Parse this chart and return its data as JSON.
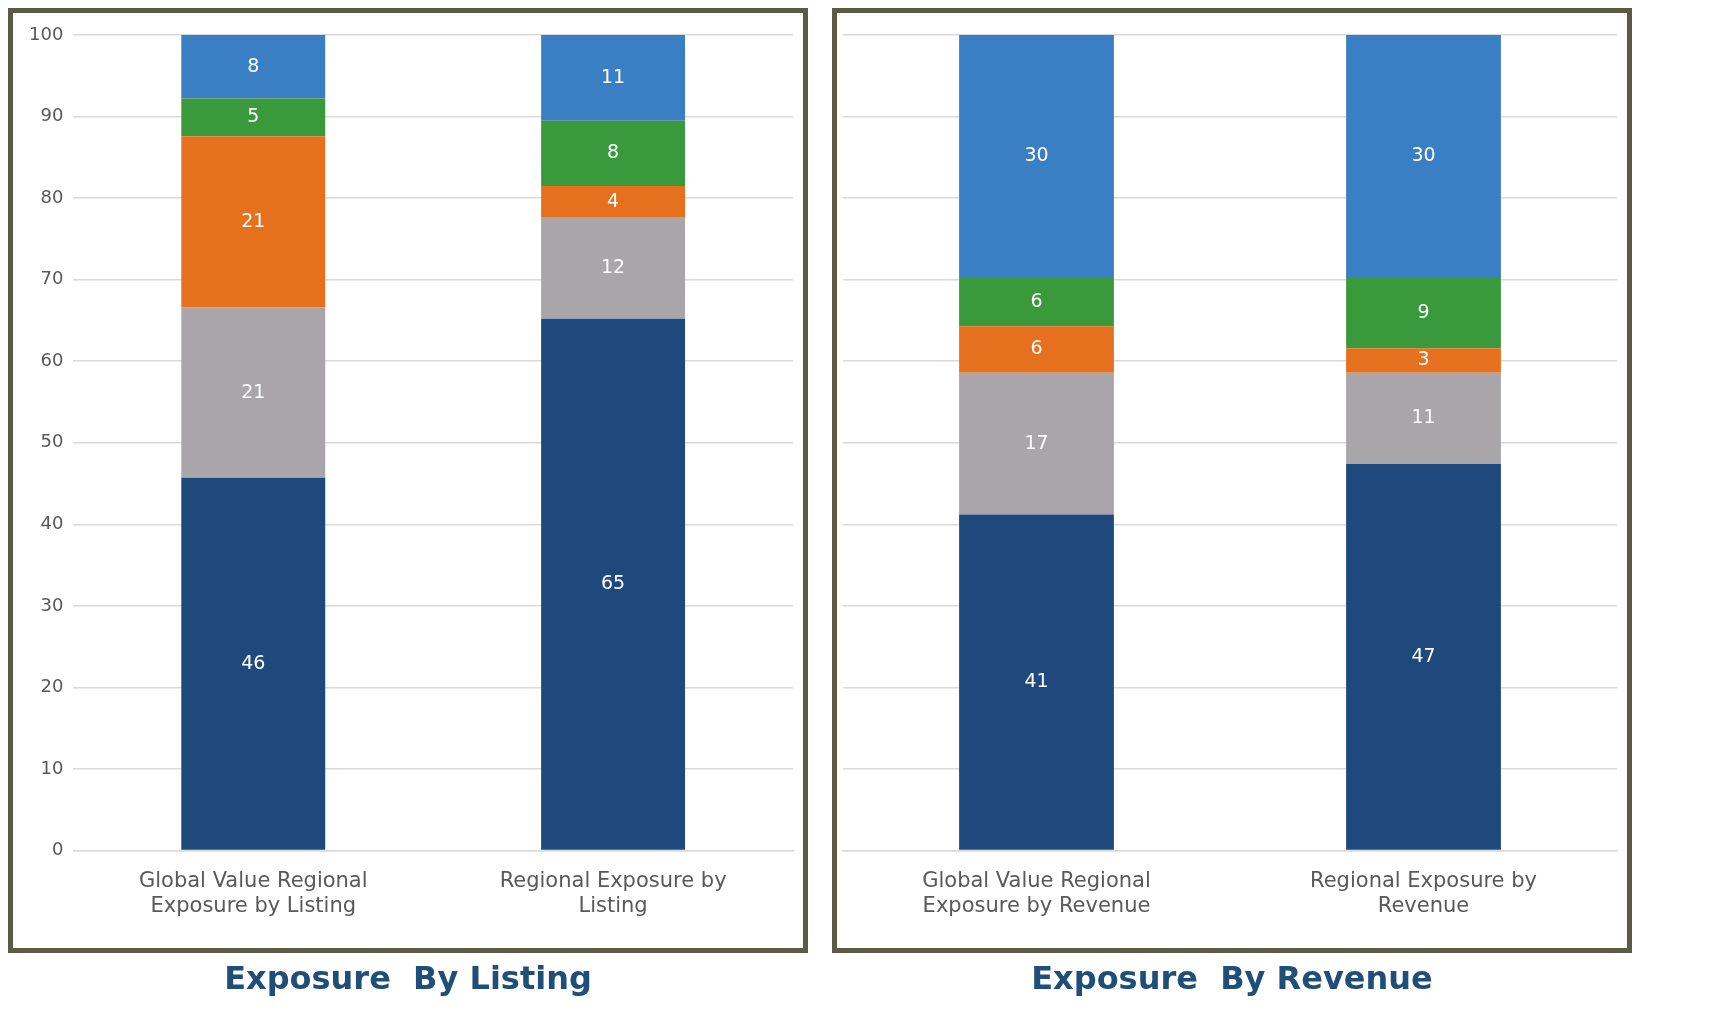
{
  "chart_data": [
    {
      "type": "bar",
      "title": "Exposure  By Listing",
      "stacked": true,
      "grid": "y",
      "categories": [
        "Global Value Regional Exposure by Listing",
        "Regional Exposure by Listing"
      ],
      "ylim": [
        0,
        100
      ],
      "yticks": [
        0,
        10,
        20,
        30,
        40,
        50,
        60,
        70,
        80,
        90,
        100
      ],
      "series": [
        {
          "color": "#1f497d",
          "values": [
            45.7,
            65.2
          ],
          "value_labels": [
            "46",
            "65"
          ]
        },
        {
          "color": "#a9a5a8",
          "values": [
            20.9,
            12.4
          ],
          "value_labels": [
            "21",
            "12"
          ]
        },
        {
          "color": "#e5711f",
          "values": [
            21.0,
            3.9
          ],
          "value_labels": [
            "21",
            "4"
          ]
        },
        {
          "color": "#3a9a3b",
          "values": [
            4.6,
            8.0
          ],
          "value_labels": [
            "5",
            "8"
          ]
        },
        {
          "color": "#3a7fc4",
          "values": [
            7.8,
            10.5
          ],
          "value_labels": [
            "8",
            "11"
          ]
        }
      ]
    },
    {
      "type": "bar",
      "title": "Exposure  By Revenue",
      "stacked": true,
      "grid": "y",
      "tick_labels": "x",
      "categories": [
        "Global Value Regional Exposure by Revenue",
        "Regional Exposure by Revenue"
      ],
      "ylim": [
        0,
        100
      ],
      "yticks": [
        0,
        10,
        20,
        30,
        40,
        50,
        60,
        70,
        80,
        90,
        100
      ],
      "series": [
        {
          "color": "#1f497d",
          "values": [
            41.2,
            47.4
          ],
          "value_labels": [
            "41",
            "47"
          ]
        },
        {
          "color": "#a9a5a8",
          "values": [
            17.4,
            11.2
          ],
          "value_labels": [
            "17",
            "11"
          ]
        },
        {
          "color": "#e5711f",
          "values": [
            5.7,
            3.0
          ],
          "value_labels": [
            "6",
            "3"
          ]
        },
        {
          "color": "#3a9a3b",
          "values": [
            5.9,
            8.6
          ],
          "value_labels": [
            "6",
            "9"
          ]
        },
        {
          "color": "#3a7fc4",
          "values": [
            29.8,
            29.8
          ],
          "value_labels": [
            "30",
            "30"
          ]
        }
      ]
    }
  ]
}
